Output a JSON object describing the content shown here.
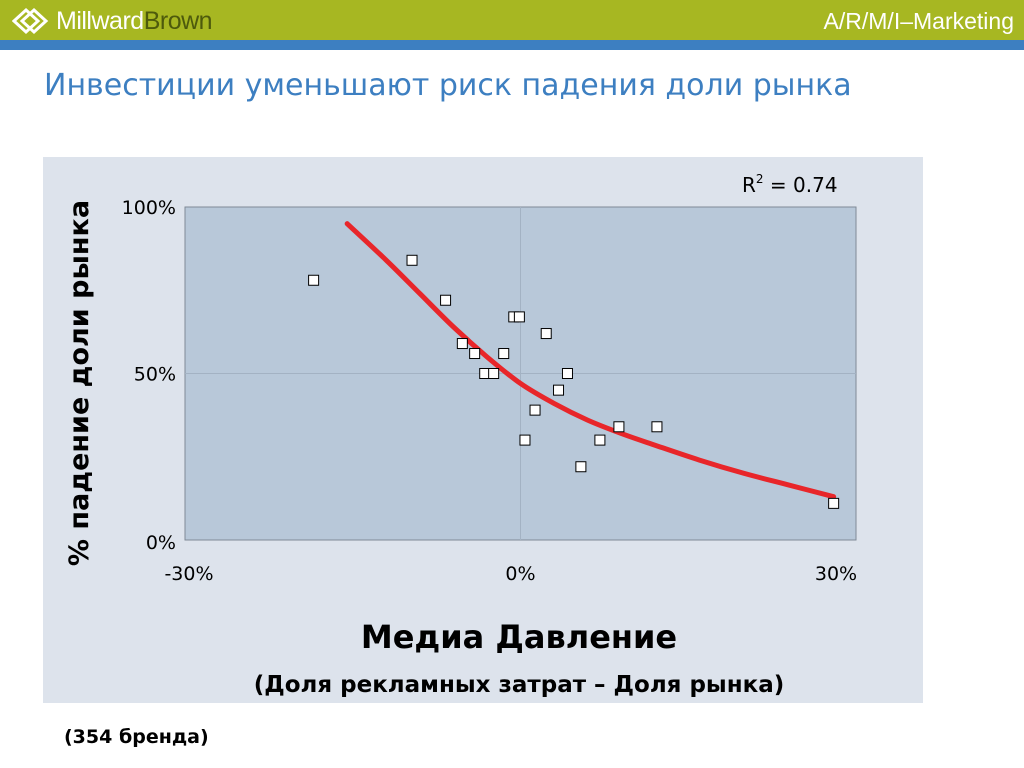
{
  "header": {
    "logo_text_1": "Millward",
    "logo_text_2": "Brown",
    "right_text": "A/R/M/I–Marketing",
    "bar_color": "#a7b722",
    "line_color": "#3d7fc1"
  },
  "page_title": "Инвестиции уменьшают риск падения доли рынка",
  "footnote": "(354 бренда)",
  "chart_data": {
    "type": "scatter",
    "title": "",
    "xlabel": "Медиа Давление",
    "xlabel_sub": "(Доля рекламных затрат – Доля рынка)",
    "ylabel": "% падение доли рынка",
    "xlim": [
      -30,
      30
    ],
    "ylim": [
      0,
      100
    ],
    "x_ticks": [
      "-30%",
      "0%",
      "30%"
    ],
    "y_ticks": [
      "100%",
      "50%",
      "0%"
    ],
    "grid": true,
    "annotation": {
      "r_label": "R",
      "r_power": "2",
      "r_value": " = 0.74"
    },
    "series": [
      {
        "points": [
          {
            "x": -18.5,
            "y": 78
          },
          {
            "x": -9.7,
            "y": 84
          },
          {
            "x": -6.7,
            "y": 72
          },
          {
            "x": -5.2,
            "y": 59
          },
          {
            "x": -4.1,
            "y": 56
          },
          {
            "x": -3.2,
            "y": 50
          },
          {
            "x": -2.4,
            "y": 50
          },
          {
            "x": -1.5,
            "y": 56
          },
          {
            "x": -0.6,
            "y": 67
          },
          {
            "x": -0.1,
            "y": 67
          },
          {
            "x": 0.4,
            "y": 30
          },
          {
            "x": 1.3,
            "y": 39
          },
          {
            "x": 2.3,
            "y": 62
          },
          {
            "x": 3.4,
            "y": 45
          },
          {
            "x": 4.2,
            "y": 50
          },
          {
            "x": 5.4,
            "y": 22
          },
          {
            "x": 7.1,
            "y": 30
          },
          {
            "x": 8.8,
            "y": 34
          },
          {
            "x": 12.2,
            "y": 34
          },
          {
            "x": 28.0,
            "y": 11
          }
        ]
      }
    ],
    "fit_curve": {
      "color": "#e8262a",
      "points": [
        {
          "x": -15.5,
          "y": 95
        },
        {
          "x": -12,
          "y": 84
        },
        {
          "x": -9,
          "y": 74
        },
        {
          "x": -6,
          "y": 64
        },
        {
          "x": -3,
          "y": 55
        },
        {
          "x": 0,
          "y": 47
        },
        {
          "x": 3,
          "y": 41
        },
        {
          "x": 6,
          "y": 36
        },
        {
          "x": 9,
          "y": 32
        },
        {
          "x": 12,
          "y": 28.5
        },
        {
          "x": 16,
          "y": 24
        },
        {
          "x": 20,
          "y": 20
        },
        {
          "x": 24,
          "y": 16.5
        },
        {
          "x": 28,
          "y": 13
        }
      ]
    },
    "plot_bg": "#b8c8d9",
    "marker_fill": "#ffffff"
  }
}
